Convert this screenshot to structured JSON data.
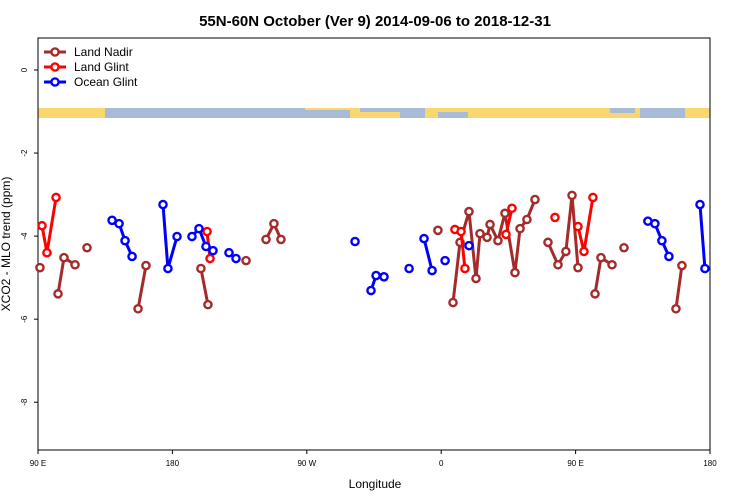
{
  "chart_data": {
    "type": "line",
    "title": "55N-60N October (Ver 9)   2014-09-06 to 2018-12-31",
    "x_label": "Longitude",
    "y_label": "XCO2 - MLO trend (ppm)",
    "xlim": [
      90,
      540
    ],
    "ylim": [
      -9.15,
      0.77
    ],
    "xticks": [
      {
        "value": 90,
        "label": "90 E"
      },
      180,
      {
        "value": 270,
        "label": "90 W"
      },
      {
        "value": 360,
        "label": "0"
      },
      {
        "value": 450,
        "label": "90 E"
      },
      {
        "value": 540,
        "label": "180"
      }
    ],
    "yticks": [
      0,
      -2,
      -4,
      -6,
      -8
    ],
    "grid": false,
    "legend": "top-left",
    "series": [
      {
        "name": "Land Nadir",
        "color": "#a52a2a",
        "x": [
          91.3,
          null,
          103.4,
          107.4,
          114.8,
          null,
          122.8,
          null,
          157,
          162.3,
          null,
          199.1,
          203.8,
          null,
          229.3,
          null,
          242.7,
          248,
          252.7,
          null,
          357.8,
          null,
          367.9,
          372.6,
          378.6,
          383.3,
          386,
          390.7,
          392.7,
          398,
          402.7,
          409.4,
          412.8,
          417.4,
          422.8,
          null,
          431.5,
          438.2,
          443.5,
          447.6,
          451.6,
          null,
          463,
          467,
          474.4,
          null,
          482.4,
          null,
          517.2,
          521.2
        ],
        "values": [
          -4.76,
          null,
          -5.39,
          -4.52,
          -4.69,
          null,
          -4.28,
          null,
          -5.75,
          -4.71,
          null,
          -4.78,
          -5.65,
          null,
          -4.59,
          null,
          -4.08,
          -3.7,
          -4.08,
          null,
          -3.86,
          null,
          -5.6,
          -4.15,
          -3.41,
          -5.02,
          -3.94,
          -4.03,
          -3.72,
          -4.11,
          -3.45,
          -4.88,
          -3.82,
          -3.6,
          -3.12,
          null,
          -4.15,
          -4.69,
          -4.37,
          -3.02,
          -4.76,
          null,
          -5.39,
          -4.52,
          -4.69,
          null,
          -4.28,
          null,
          -5.75,
          -4.71
        ]
      },
      {
        "name": "Land Glint",
        "color": "#ff0000",
        "x": [
          92.7,
          96,
          102.1,
          null,
          203.2,
          205.2,
          null,
          369.2,
          373.3,
          375.9,
          null,
          403.4,
          407.4,
          null,
          436.2,
          null,
          451.6,
          455.6,
          461.6
        ],
        "values": [
          -3.75,
          -4.4,
          -3.07,
          null,
          -3.89,
          -4.54,
          null,
          -3.84,
          -3.89,
          -4.78,
          null,
          -3.96,
          -3.33,
          null,
          -3.55,
          null,
          -3.77,
          -4.37,
          -3.07
        ]
      },
      {
        "name": "Ocean Glint",
        "color": "#0000ff",
        "x": [
          139.6,
          144.3,
          148.3,
          153,
          null,
          173.7,
          177,
          183.1,
          null,
          193.1,
          197.8,
          202.5,
          207.2,
          null,
          217.9,
          222.6,
          null,
          302.3,
          null,
          313,
          316.4,
          321.7,
          null,
          338.5,
          null,
          348.5,
          353.9,
          null,
          362.6,
          null,
          378.6,
          null,
          498.4,
          503.1,
          507.8,
          512.5,
          null,
          533.3,
          536.6
        ],
        "values": [
          -3.62,
          -3.7,
          -4.11,
          -4.49,
          null,
          -3.24,
          -4.78,
          -4.01,
          null,
          -4.01,
          -3.82,
          -4.25,
          -4.35,
          null,
          -4.4,
          -4.54,
          null,
          -4.13,
          null,
          -5.31,
          -4.95,
          -4.98,
          null,
          -4.78,
          null,
          -4.06,
          -4.83,
          null,
          -4.59,
          null,
          -4.23,
          null,
          -3.64,
          -3.7,
          -4.11,
          -4.49,
          null,
          -3.24,
          -4.78
        ]
      }
    ]
  }
}
